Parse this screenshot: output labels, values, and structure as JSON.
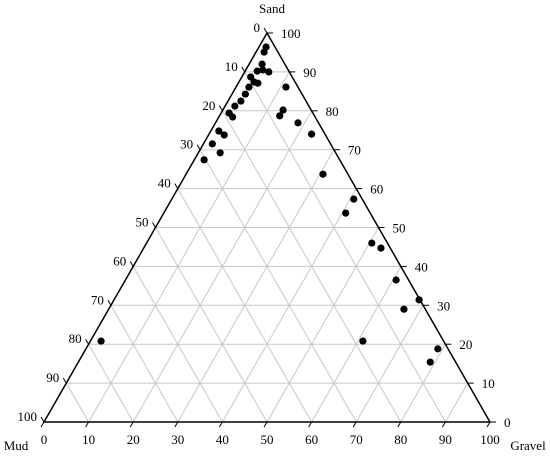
{
  "chart_data": {
    "type": "ternary",
    "sand_label": "Sand",
    "gravel_label": "Gravel",
    "mud_label": "Mud",
    "sand_ticks": [
      0,
      10,
      20,
      30,
      40,
      50,
      60,
      70,
      80,
      90,
      100
    ],
    "gravel_ticks": [
      0,
      10,
      20,
      30,
      40,
      50,
      60,
      70,
      80,
      90,
      100
    ],
    "mud_ticks": [
      0,
      10,
      20,
      30,
      40,
      50,
      60,
      70,
      80,
      90,
      100
    ],
    "grid": true,
    "series": [
      {
        "color": "#000000",
        "sand": [
          96.4,
          95.1,
          92.0,
          90.2,
          90.5,
          90.0,
          88.7,
          87.4,
          87.1,
          86.1,
          84.3,
          86.1,
          82.5,
          81.2,
          80.2,
          78.7,
          79.4,
          78.4,
          76.9,
          74.0,
          74.8,
          73.8,
          71.5,
          69.2,
          67.4,
          63.7,
          57.3,
          53.7,
          46.0,
          44.7,
          36.5,
          31.4,
          29.0,
          20.8,
          18.8,
          15.4,
          20.8
        ],
        "gravel": [
          1.6,
          1.8,
          2.9,
          2.7,
          3.8,
          5.4,
          2.0,
          3.4,
          4.4,
          2.9,
          3.0,
          11.2,
          2.9,
          2.2,
          13.5,
          13.5,
          1.8,
          3.1,
          18.5,
          23.0,
          1.8,
          3.5,
          2.0,
          4.9,
          2.2,
          30.7,
          40.8,
          40.8,
          50.5,
          53.2,
          60.7,
          68.4,
          66.2,
          61.1,
          78.9,
          78.9,
          2.4
        ],
        "mud": [
          2.0,
          3.1,
          5.1,
          7.1,
          5.7,
          4.6,
          9.3,
          9.2,
          8.5,
          11.0,
          12.7,
          2.7,
          14.6,
          16.6,
          6.3,
          7.8,
          18.8,
          18.5,
          4.6,
          3.0,
          23.4,
          22.7,
          26.5,
          25.9,
          30.4,
          5.6,
          1.9,
          5.5,
          3.5,
          2.1,
          2.8,
          0.2,
          4.8,
          18.1,
          2.3,
          5.7,
          76.8
        ]
      }
    ]
  }
}
